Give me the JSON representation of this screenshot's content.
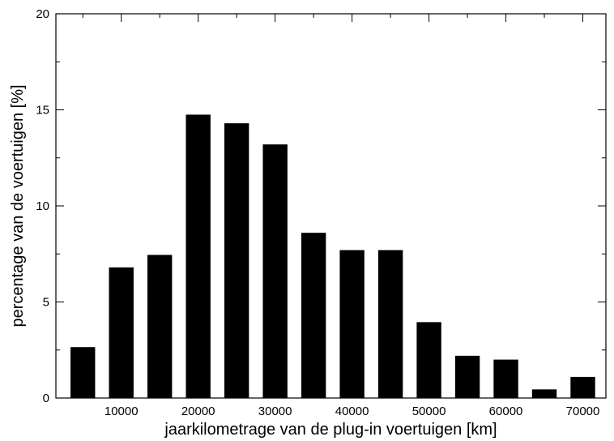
{
  "chart_data": {
    "type": "bar",
    "xlabel": "jaarkilometrage van de plug-in voertuigen [km]",
    "ylabel": "percentage van de voertuigen [%]",
    "x": [
      5000,
      10000,
      15000,
      20000,
      25000,
      30000,
      35000,
      40000,
      45000,
      50000,
      55000,
      60000,
      65000,
      70000
    ],
    "values": [
      2.65,
      6.8,
      7.45,
      14.75,
      14.3,
      13.2,
      8.6,
      7.7,
      7.7,
      3.95,
      2.2,
      2.0,
      0.45,
      1.1
    ],
    "xlim": [
      1500,
      73000
    ],
    "ylim": [
      0,
      20
    ],
    "xticks": [
      10000,
      20000,
      30000,
      40000,
      50000,
      60000,
      70000
    ],
    "xtick_labels": [
      "10000",
      "20000",
      "30000",
      "40000",
      "50000",
      "60000",
      "70000"
    ],
    "yticks": [
      0,
      5,
      10,
      15,
      20
    ],
    "ytick_labels": [
      "0",
      "5",
      "10",
      "15",
      "20"
    ],
    "grid": false,
    "bar_color": "#000000"
  }
}
